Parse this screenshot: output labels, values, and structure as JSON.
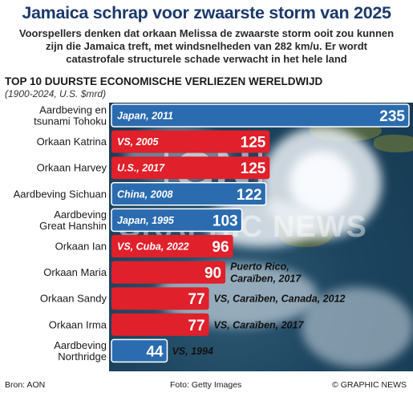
{
  "header": {
    "title": "Jamaica schrap voor zwaarste storm van 2025",
    "subtitle_lines": [
      "Voorspellers denken dat orkaan Melissa de zwaarste storm ooit zou kunnen",
      "zijn die Jamaica treft, met windsnelheden van 282 km/u. Er wordt",
      "catastrofale structurele schade verwacht in het hele land"
    ]
  },
  "footer": {
    "source": "Bron: AON",
    "photo": "Foto: Getty Images",
    "credit": "© GRAPHIC NEWS"
  },
  "watermark": {
    "logo": "GN",
    "text": "GRAPHIC NEWS"
  },
  "colors": {
    "blue_bar": "#2b6cb0",
    "red_bar": "#e0202a",
    "title": "#1b3a6b"
  },
  "chart_data": {
    "type": "bar",
    "orientation": "horizontal",
    "title": "TOP 10 DUURSTE ECONOMISCHE VERLIEZEN WERELDWIJD",
    "subtitle": "(1900-2024, U.S. $mrd)",
    "xlim": [
      0,
      235
    ],
    "grid": false,
    "legend": "none",
    "items": [
      {
        "label": [
          "Aardbeving en",
          "tsunami Tohoku"
        ],
        "value": 235,
        "note": [
          "Japan, 2011"
        ],
        "kind": "quake"
      },
      {
        "label": [
          "Orkaan Katrina"
        ],
        "value": 125,
        "note": [
          "VS, 2005"
        ],
        "kind": "storm"
      },
      {
        "label": [
          "Orkaan Harvey"
        ],
        "value": 125,
        "note": [
          "U.S., 2017"
        ],
        "kind": "storm"
      },
      {
        "label": [
          "Aardbeving Sichuan"
        ],
        "value": 122,
        "note": [
          "China, 2008"
        ],
        "kind": "quake"
      },
      {
        "label": [
          "Aardbeving",
          "Great Hanshin"
        ],
        "value": 103,
        "note": [
          "Japan, 1995"
        ],
        "kind": "quake"
      },
      {
        "label": [
          "Orkaan Ian"
        ],
        "value": 96,
        "note": [
          "VS, Cuba, 2022"
        ],
        "kind": "storm"
      },
      {
        "label": [
          "Orkaan Maria"
        ],
        "value": 90,
        "note": [
          "Puerto Rico,",
          "Caraïben, 2017"
        ],
        "kind": "storm"
      },
      {
        "label": [
          "Orkaan Sandy"
        ],
        "value": 77,
        "note": [
          "VS, Caraïben, Canada, 2012"
        ],
        "kind": "storm"
      },
      {
        "label": [
          "Orkaan Irma"
        ],
        "value": 77,
        "note": [
          "VS, Caraïben, 2017"
        ],
        "kind": "storm"
      },
      {
        "label": [
          "Aardbeving",
          "Northridge"
        ],
        "value": 44,
        "note": [
          "VS, 1994"
        ],
        "kind": "quake"
      }
    ]
  }
}
